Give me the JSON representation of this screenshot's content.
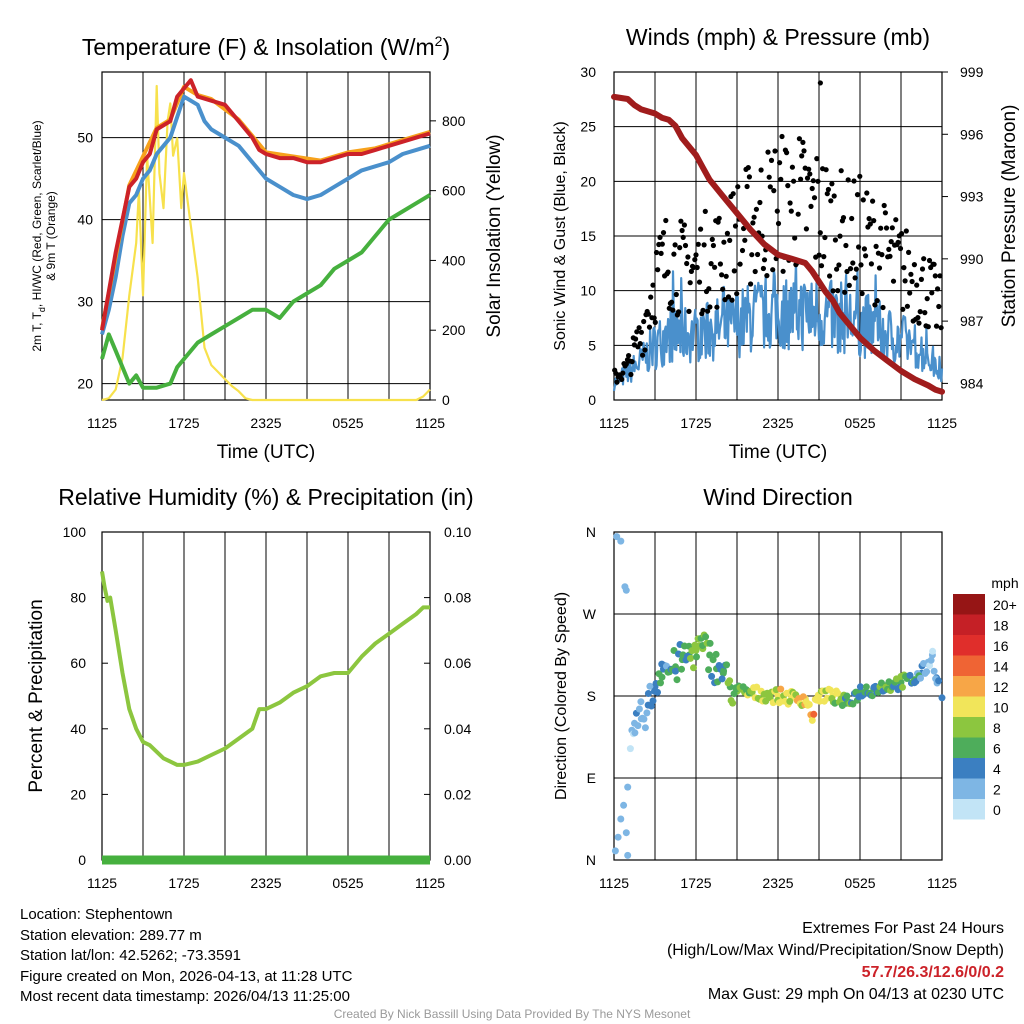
{
  "chart_data": [
    {
      "type": "line",
      "title_main": "Temperature (F) & Insolation (W/m",
      "title_sup": "2",
      "title_end": ")",
      "xlabel": "Time (UTC)",
      "ylabel_left_line1_a": "2m T, T",
      "ylabel_left_line1_sub": "d",
      "ylabel_left_line1_b": ", HI/WC (Red, Green, Scarlet/Blue)",
      "ylabel_left_line2": "& 9m T (Orange)",
      "ylabel_right": "Solar Insolation (Yellow)",
      "x_tick_labels": [
        "1125",
        "1725",
        "2325",
        "0525",
        "1125"
      ],
      "xlim_hours": [
        0,
        24
      ],
      "ylim_left": [
        18,
        58
      ],
      "ylim_right": [
        0,
        940
      ],
      "y_ticks_left": [
        20,
        30,
        40,
        50
      ],
      "y_ticks_right": [
        0,
        200,
        400,
        600,
        800
      ],
      "series": [
        {
          "name": "2m T",
          "color": "#cc2229",
          "axis": "left",
          "x": [
            0,
            1,
            1.5,
            2,
            2.5,
            3,
            3.5,
            4,
            5,
            5.5,
            6,
            6.5,
            7,
            8,
            9,
            10,
            11,
            11.5,
            12,
            13,
            14,
            15,
            16,
            17,
            18,
            19,
            20,
            21,
            22,
            23,
            24
          ],
          "y": [
            26.5,
            36,
            40,
            44,
            45,
            47,
            48,
            51,
            52,
            55,
            56,
            57,
            55,
            54.5,
            54,
            52,
            50,
            48.5,
            48,
            47.5,
            47.5,
            47,
            47,
            47.5,
            48,
            48,
            48.5,
            49,
            49.5,
            50,
            50.5
          ]
        },
        {
          "name": "9m T",
          "color": "#f7a21c",
          "axis": "left",
          "x": [
            0,
            2,
            4,
            5,
            6,
            7,
            8,
            10,
            12,
            14,
            16,
            18,
            20,
            22,
            24
          ],
          "y": [
            26.7,
            44.2,
            51.2,
            52.2,
            56.2,
            55.2,
            54.7,
            52.2,
            48.2,
            47.7,
            47.2,
            48.2,
            48.7,
            49.7,
            50.7
          ]
        },
        {
          "name": "Td",
          "color": "#46b03e",
          "axis": "left",
          "x": [
            0,
            0.5,
            1,
            2,
            2.5,
            3,
            4,
            5,
            5.5,
            6,
            7,
            8,
            9,
            10,
            11,
            12,
            13,
            14,
            15,
            16,
            17,
            18,
            19,
            20,
            21,
            22,
            23,
            24
          ],
          "y": [
            23,
            26,
            24,
            20,
            21,
            19.5,
            19.5,
            20,
            22,
            23,
            25,
            26,
            27,
            28,
            29,
            29,
            28,
            30,
            31,
            32,
            34,
            35,
            36,
            38,
            40,
            41,
            42,
            43
          ]
        },
        {
          "name": "HI/WC",
          "color": "#4a90cc",
          "axis": "left",
          "x": [
            0,
            0.5,
            1,
            1.5,
            2,
            2.5,
            3,
            3.5,
            4,
            4.5,
            5,
            6,
            7,
            7.5,
            8,
            9,
            10,
            11,
            11.5,
            12,
            13,
            14,
            15,
            16,
            17,
            18,
            19,
            20,
            21,
            22,
            23,
            24
          ],
          "y": [
            26,
            29,
            33,
            38,
            42,
            43,
            45,
            46,
            48,
            49,
            50,
            55,
            54,
            52,
            51,
            50,
            49,
            47,
            46,
            45,
            44,
            43,
            42.5,
            43,
            44,
            45,
            46,
            46.5,
            47,
            48,
            48.5,
            49
          ]
        },
        {
          "name": "Solar Insolation",
          "color": "#f7e14c",
          "axis": "right",
          "x": [
            0,
            0.5,
            1,
            1.5,
            2,
            2.5,
            2.7,
            3,
            3.3,
            3.7,
            4,
            4.2,
            4.5,
            4.8,
            5,
            5.2,
            5.5,
            5.8,
            6,
            6.5,
            7,
            7.5,
            8,
            8.5,
            9,
            9.5,
            10,
            10.5,
            11,
            12,
            13,
            14,
            15,
            16,
            17,
            18,
            19,
            20,
            21,
            22,
            23,
            23.5,
            24
          ],
          "y": [
            0,
            5,
            30,
            120,
            300,
            450,
            600,
            300,
            700,
            450,
            900,
            650,
            550,
            800,
            850,
            700,
            750,
            550,
            650,
            500,
            350,
            150,
            100,
            80,
            60,
            40,
            25,
            5,
            0,
            0,
            0,
            0,
            0,
            0,
            0,
            0,
            0,
            0,
            0,
            0,
            0,
            10,
            30
          ]
        }
      ]
    },
    {
      "type": "scatter",
      "title": "Winds (mph) & Pressure (mb)",
      "xlabel": "Time (UTC)",
      "ylabel_left": "Sonic Wind & Gust (Blue, Black)",
      "ylabel_right": "Station Pressure (Maroon)",
      "x_tick_labels": [
        "1125",
        "1725",
        "2325",
        "0525",
        "1125"
      ],
      "xlim_hours": [
        0,
        24
      ],
      "ylim_left": [
        0,
        30
      ],
      "ylim_right": [
        983.2,
        999
      ],
      "y_ticks_left": [
        0,
        5,
        10,
        15,
        20,
        25,
        30
      ],
      "y_ticks_right": [
        984,
        987,
        990,
        993,
        996,
        999
      ],
      "series": [
        {
          "name": "Station Pressure",
          "color": "#a01c1c",
          "axis": "right",
          "x": [
            0,
            1,
            1.5,
            2,
            3,
            3.5,
            4,
            4.5,
            5,
            6,
            6.5,
            7,
            8,
            9,
            10,
            11,
            12,
            13,
            14,
            14.5,
            15,
            15.5,
            16,
            16.5,
            17,
            17.5,
            18,
            19,
            20,
            21,
            22,
            23,
            23.5,
            24
          ],
          "y": [
            997.8,
            997.7,
            997.4,
            997.2,
            997.0,
            996.8,
            996.7,
            996.4,
            995.8,
            995.0,
            994.4,
            993.8,
            993.0,
            992.2,
            991.4,
            990.7,
            990.2,
            990.0,
            989.8,
            989.4,
            988.9,
            988.4,
            988.0,
            987.4,
            987.0,
            986.6,
            986.2,
            985.6,
            985.1,
            984.6,
            984.2,
            983.9,
            983.7,
            983.6
          ]
        },
        {
          "name": "Gust",
          "color": "#000000",
          "axis": "left",
          "max_gust": 29,
          "envelope_x": [
            0,
            1,
            2,
            3,
            4,
            5,
            6,
            7,
            8,
            9,
            10,
            11,
            12,
            13,
            14,
            15,
            16,
            17,
            18,
            19,
            20,
            21,
            22,
            23,
            24
          ],
          "envelope_y": [
            2,
            3,
            6,
            11,
            13,
            12,
            12,
            13,
            13,
            15,
            16,
            17,
            18,
            18,
            18,
            17,
            16,
            15,
            15,
            14,
            13,
            12,
            11,
            10,
            8
          ]
        },
        {
          "name": "Sonic Wind",
          "color": "#4a90cc",
          "axis": "left",
          "envelope_x": [
            0,
            1,
            2,
            3,
            4,
            5,
            6,
            7,
            8,
            9,
            10,
            11,
            12,
            13,
            14,
            15,
            16,
            17,
            18,
            19,
            20,
            21,
            22,
            23,
            24
          ],
          "envelope_y": [
            1.5,
            2.5,
            3.5,
            5,
            6,
            6,
            6,
            6.5,
            6.5,
            7,
            7.5,
            8,
            8,
            8,
            8,
            8,
            7.5,
            7.5,
            7,
            6.5,
            6,
            5.5,
            5,
            4,
            2.5
          ]
        }
      ]
    },
    {
      "type": "line",
      "title": "Relative Humidity (%) & Precipitation (in)",
      "xlabel": "",
      "ylabel": "Percent & Precipitation",
      "x_tick_labels": [
        "1125",
        "1725",
        "2325",
        "0525",
        "1125"
      ],
      "xlim_hours": [
        0,
        24
      ],
      "ylim_left": [
        0,
        100
      ],
      "ylim_right": [
        0,
        0.1
      ],
      "y_ticks_left": [
        0,
        20,
        40,
        60,
        80,
        100
      ],
      "y_ticks_right": [
        "0.00",
        "0.02",
        "0.04",
        "0.06",
        "0.08",
        "0.10"
      ],
      "series": [
        {
          "name": "Relative Humidity",
          "color": "#8cc63f",
          "axis": "left",
          "x": [
            0,
            0.2,
            0.4,
            0.6,
            1,
            1.5,
            2,
            2.5,
            3,
            3.5,
            4,
            4.5,
            5,
            5.5,
            6,
            7,
            8,
            9,
            10,
            11,
            11.5,
            12,
            13,
            14,
            15,
            16,
            17,
            18,
            19,
            20,
            21,
            22,
            23,
            23.5,
            24
          ],
          "y": [
            88,
            83,
            79,
            80,
            70,
            57,
            46,
            40,
            36,
            35,
            33,
            31,
            30,
            29,
            29,
            30,
            32,
            34,
            37,
            40,
            46,
            46,
            48,
            51,
            53,
            56,
            57,
            57,
            62,
            66,
            69,
            72,
            75,
            77,
            77
          ]
        },
        {
          "name": "Precipitation",
          "color": "#46b03e",
          "axis": "right",
          "x": [
            0,
            24
          ],
          "y": [
            0,
            0
          ]
        }
      ]
    },
    {
      "type": "scatter",
      "title": "Wind Direction",
      "ylabel": "Direction (Colored By Speed)",
      "x_tick_labels": [
        "1125",
        "1725",
        "2325",
        "0525",
        "1125"
      ],
      "xlim_hours": [
        0,
        24
      ],
      "y_tick_labels": [
        "N",
        "E",
        "S",
        "W",
        "N"
      ],
      "ylim_degrees": [
        0,
        360
      ],
      "legend_title": "mph",
      "legend_labels": [
        "20+",
        "18",
        "16",
        "14",
        "12",
        "10",
        "8",
        "6",
        "4",
        "2",
        "0"
      ],
      "legend_colors": [
        "#961515",
        "#c52026",
        "#e02e2b",
        "#ef6434",
        "#f7a647",
        "#f1e55a",
        "#8cc63f",
        "#4ead5b",
        "#3b7fc1",
        "#7eb6e4",
        "#c2e4f6"
      ],
      "points": [
        {
          "t": 0.1,
          "d": 10,
          "s": 1
        },
        {
          "t": 0.3,
          "d": 25,
          "s": 1
        },
        {
          "t": 0.5,
          "d": 45,
          "s": 1
        },
        {
          "t": 0.7,
          "d": 60,
          "s": 1
        },
        {
          "t": 0.9,
          "d": 30,
          "s": 1
        },
        {
          "t": 1.0,
          "d": 5,
          "s": 1
        },
        {
          "t": 0.2,
          "d": 355,
          "s": 1
        },
        {
          "t": 0.5,
          "d": 350,
          "s": 1
        },
        {
          "t": 0.8,
          "d": 300,
          "s": 1
        },
        {
          "t": 0.9,
          "d": 296,
          "s": 1
        },
        {
          "t": 1.0,
          "d": 80,
          "s": 1
        },
        {
          "t": 1.5,
          "d": 150,
          "s": 2
        },
        {
          "t": 2.0,
          "d": 155,
          "s": 2
        },
        {
          "t": 2.5,
          "d": 170,
          "s": 3
        },
        {
          "t": 3.0,
          "d": 190,
          "s": 4
        },
        {
          "t": 3.5,
          "d": 215,
          "s": 4
        },
        {
          "t": 4.0,
          "d": 208,
          "s": 5
        },
        {
          "t": 4.5,
          "d": 212,
          "s": 6
        },
        {
          "t": 5.0,
          "d": 220,
          "s": 5
        },
        {
          "t": 5.5,
          "d": 225,
          "s": 6
        },
        {
          "t": 6.0,
          "d": 230,
          "s": 7
        },
        {
          "t": 6.5,
          "d": 232,
          "s": 7
        },
        {
          "t": 7.0,
          "d": 225,
          "s": 6
        },
        {
          "t": 7.5,
          "d": 210,
          "s": 5
        },
        {
          "t": 8.0,
          "d": 205,
          "s": 5
        },
        {
          "t": 8.5,
          "d": 190,
          "s": 6
        },
        {
          "t": 9.0,
          "d": 185,
          "s": 7
        },
        {
          "t": 10.0,
          "d": 183,
          "s": 8
        },
        {
          "t": 11.0,
          "d": 182,
          "s": 9
        },
        {
          "t": 12.0,
          "d": 180,
          "s": 9
        },
        {
          "t": 13.0,
          "d": 178,
          "s": 10
        },
        {
          "t": 14.0,
          "d": 177,
          "s": 10
        },
        {
          "t": 14.5,
          "d": 158,
          "s": 12
        },
        {
          "t": 15.0,
          "d": 181,
          "s": 9
        },
        {
          "t": 16.0,
          "d": 180,
          "s": 9
        },
        {
          "t": 17.0,
          "d": 172,
          "s": 6
        },
        {
          "t": 18.0,
          "d": 185,
          "s": 5
        },
        {
          "t": 19.0,
          "d": 188,
          "s": 5
        },
        {
          "t": 20.0,
          "d": 192,
          "s": 6
        },
        {
          "t": 21.0,
          "d": 195,
          "s": 6
        },
        {
          "t": 22.0,
          "d": 198,
          "s": 5
        },
        {
          "t": 22.5,
          "d": 205,
          "s": 3
        },
        {
          "t": 23.0,
          "d": 215,
          "s": 2
        },
        {
          "t": 23.3,
          "d": 225,
          "s": 1
        },
        {
          "t": 23.6,
          "d": 200,
          "s": 3
        },
        {
          "t": 24.0,
          "d": 178,
          "s": 4
        }
      ]
    }
  ],
  "footer": {
    "location": "Location: Stephentown",
    "elevation": "Station elevation: 289.77 m",
    "latlon": "Station lat/lon: 42.5262; -73.3591",
    "created": "Figure created on Mon, 2026-04-13, at 11:28 UTC",
    "recent": "Most recent data timestamp: 2026/04/13 11:25:00",
    "extremes_title": "Extremes For Past 24 Hours",
    "extremes_legend": "(High/Low/Max Wind/Precipitation/Snow Depth)",
    "extremes_values": "57.7/26.3/12.6/0/0.2",
    "max_gust": "Max Gust: 29 mph On 04/13 at 0230 UTC",
    "credit": "Created By Nick Bassill Using Data Provided By The NYS Mesonet"
  }
}
